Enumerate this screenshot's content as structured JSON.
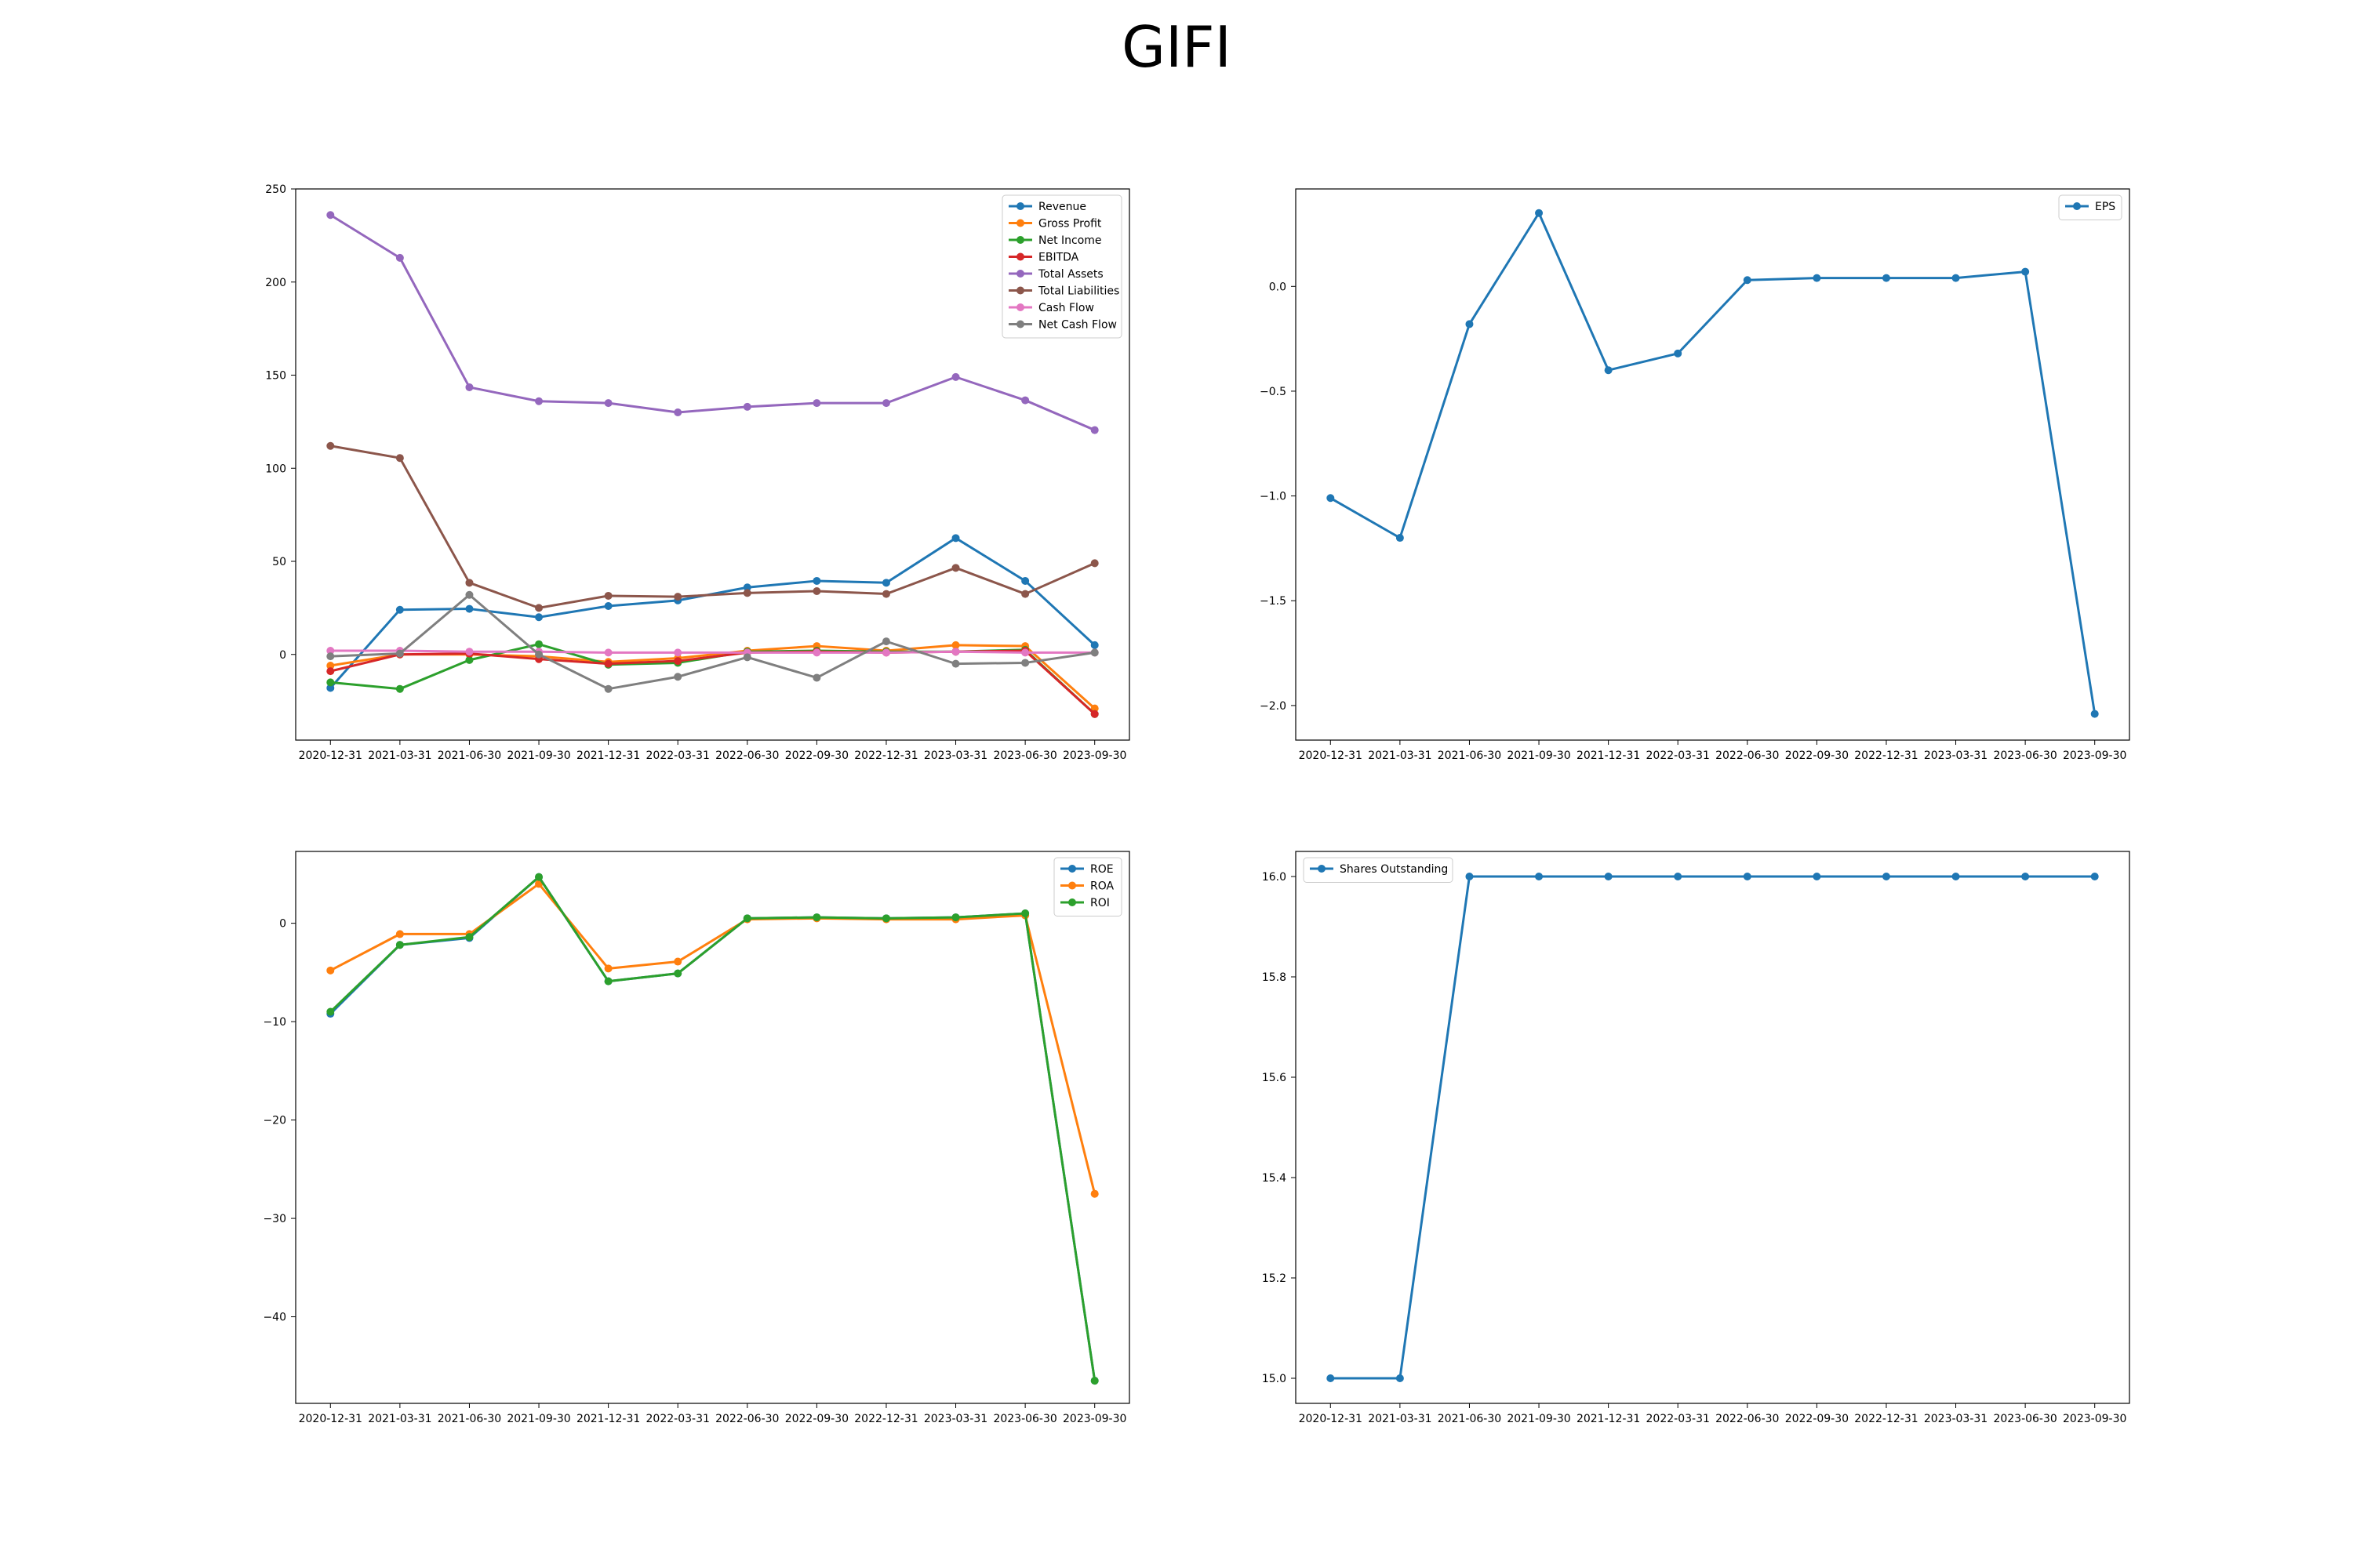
{
  "page": {
    "title": "GIFI"
  },
  "chart_data": [
    {
      "type": "line",
      "x": [
        "2020-12-31",
        "2021-03-31",
        "2021-06-30",
        "2021-09-30",
        "2021-12-31",
        "2022-03-31",
        "2022-06-30",
        "2022-09-30",
        "2022-12-31",
        "2023-03-31",
        "2023-06-30",
        "2023-09-30"
      ],
      "ylim": [
        -46,
        250
      ],
      "yticks": [
        0,
        50,
        100,
        150,
        200,
        250
      ],
      "legend": "top-right",
      "series": [
        {
          "name": "Revenue",
          "color": "#1f77b4",
          "values": [
            -18,
            24,
            24.5,
            20,
            26,
            29,
            36,
            39.5,
            38.5,
            62.5,
            39.5,
            5
          ]
        },
        {
          "name": "Gross Profit",
          "color": "#ff7f0e",
          "values": [
            -6,
            0,
            0,
            -1,
            -4,
            -2,
            2,
            4.5,
            2,
            5,
            4.5,
            -29
          ]
        },
        {
          "name": "Net Income",
          "color": "#2ca02c",
          "values": [
            -15,
            -18.5,
            -3,
            5.5,
            -5.5,
            -4.5,
            1.5,
            2,
            1.5,
            1.5,
            2.5,
            -32
          ]
        },
        {
          "name": "EBITDA",
          "color": "#d62728",
          "values": [
            -9,
            0,
            0.5,
            -2.5,
            -5,
            -3.5,
            1,
            1.5,
            1,
            1.5,
            2,
            -32
          ]
        },
        {
          "name": "Total Assets",
          "color": "#9467bd",
          "values": [
            236,
            213,
            143.5,
            136,
            135,
            130,
            133,
            135,
            135,
            149,
            136.5,
            120.5
          ]
        },
        {
          "name": "Total Liabilities",
          "color": "#8c564b",
          "values": [
            112,
            105.5,
            38.5,
            25,
            31.5,
            31,
            33,
            34,
            32.5,
            46.5,
            32.5,
            49
          ]
        },
        {
          "name": "Cash Flow",
          "color": "#e377c2",
          "values": [
            2,
            2,
            1.5,
            1.5,
            1,
            1,
            1,
            1,
            1,
            1.5,
            1,
            1
          ]
        },
        {
          "name": "Net Cash Flow",
          "color": "#7f7f7f",
          "values": [
            -1,
            0.5,
            32,
            0,
            -18.5,
            -12,
            -1.5,
            -12.5,
            7,
            -5,
            -4.5,
            1
          ]
        }
      ]
    },
    {
      "type": "line",
      "x": [
        "2020-12-31",
        "2021-03-31",
        "2021-06-30",
        "2021-09-30",
        "2021-12-31",
        "2022-03-31",
        "2022-06-30",
        "2022-09-30",
        "2022-12-31",
        "2023-03-31",
        "2023-06-30",
        "2023-09-30"
      ],
      "ylim": [
        -2.165,
        0.465
      ],
      "yticks": [
        0.0,
        -0.5,
        -1.0,
        -1.5,
        -2.0
      ],
      "yticklabels": [
        "0.0",
        "−0.5",
        "−1.0",
        "−1.5",
        "−2.0"
      ],
      "legend": "top-right",
      "series": [
        {
          "name": "EPS",
          "color": "#1f77b4",
          "values": [
            -1.01,
            -1.2,
            -0.18,
            0.35,
            -0.4,
            -0.32,
            0.03,
            0.04,
            0.04,
            0.04,
            0.07,
            -2.04
          ]
        }
      ]
    },
    {
      "type": "line",
      "x": [
        "2020-12-31",
        "2021-03-31",
        "2021-06-30",
        "2021-09-30",
        "2021-12-31",
        "2022-03-31",
        "2022-06-30",
        "2022-09-30",
        "2022-12-31",
        "2023-03-31",
        "2023-06-30",
        "2023-09-30"
      ],
      "ylim": [
        -48.8,
        7.3
      ],
      "yticks": [
        0,
        -10,
        -20,
        -30,
        -40
      ],
      "yticklabels": [
        "0",
        "−10",
        "−20",
        "−30",
        "−40"
      ],
      "legend": "top-right",
      "series": [
        {
          "name": "ROE",
          "color": "#1f77b4",
          "values": [
            -9.2,
            -2.2,
            -1.5,
            4.7,
            -5.9,
            -5.1,
            0.5,
            0.6,
            0.5,
            0.6,
            1.0,
            -46.5
          ]
        },
        {
          "name": "ROA",
          "color": "#ff7f0e",
          "values": [
            -4.8,
            -1.1,
            -1.1,
            4.0,
            -4.6,
            -3.9,
            0.4,
            0.5,
            0.4,
            0.4,
            0.8,
            -27.5
          ]
        },
        {
          "name": "ROI",
          "color": "#2ca02c",
          "values": [
            -9.0,
            -2.2,
            -1.4,
            4.7,
            -5.9,
            -5.1,
            0.5,
            0.6,
            0.5,
            0.6,
            1.0,
            -46.5
          ]
        }
      ]
    },
    {
      "type": "line",
      "x": [
        "2020-12-31",
        "2021-03-31",
        "2021-06-30",
        "2021-09-30",
        "2021-12-31",
        "2022-03-31",
        "2022-06-30",
        "2022-09-30",
        "2022-12-31",
        "2023-03-31",
        "2023-06-30",
        "2023-09-30"
      ],
      "ylim": [
        14.95,
        16.05
      ],
      "yticks": [
        15.0,
        15.2,
        15.4,
        15.6,
        15.8,
        16.0
      ],
      "yticklabels": [
        "15.0",
        "15.2",
        "15.4",
        "15.6",
        "15.8",
        "16.0"
      ],
      "legend": "top-left",
      "series": [
        {
          "name": "Shares Outstanding",
          "color": "#1f77b4",
          "values": [
            15,
            15,
            16,
            16,
            16,
            16,
            16,
            16,
            16,
            16,
            16,
            16
          ]
        }
      ]
    }
  ]
}
